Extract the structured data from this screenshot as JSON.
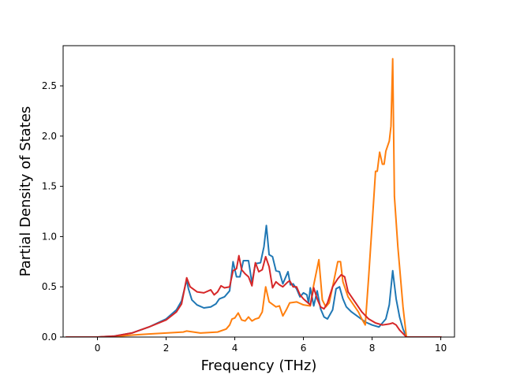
{
  "chart_data": {
    "type": "line",
    "title": "",
    "xlabel": "Frequency (THz)",
    "ylabel": "Partial Density of States",
    "xlim": [
      -1.0,
      10.4
    ],
    "ylim": [
      0.0,
      2.9
    ],
    "grid": false,
    "legend": "none",
    "x_ticks": [
      0,
      2,
      4,
      6,
      8,
      10
    ],
    "y_ticks": [
      0.0,
      0.5,
      1.0,
      1.5,
      2.0,
      2.5
    ],
    "x_tick_labels": [
      "0",
      "2",
      "4",
      "6",
      "8",
      "10"
    ],
    "y_tick_labels": [
      "0.0",
      "0.5",
      "1.0",
      "1.5",
      "2.0",
      "2.5"
    ],
    "series": [
      {
        "color": "#1f77b4",
        "points": [
          [
            -0.9,
            0
          ],
          [
            0,
            0
          ],
          [
            0.5,
            0.01
          ],
          [
            1.0,
            0.04
          ],
          [
            1.5,
            0.1
          ],
          [
            2.0,
            0.18
          ],
          [
            2.3,
            0.27
          ],
          [
            2.45,
            0.36
          ],
          [
            2.6,
            0.57
          ],
          [
            2.65,
            0.48
          ],
          [
            2.75,
            0.37
          ],
          [
            2.9,
            0.32
          ],
          [
            3.1,
            0.29
          ],
          [
            3.3,
            0.3
          ],
          [
            3.45,
            0.33
          ],
          [
            3.55,
            0.38
          ],
          [
            3.7,
            0.4
          ],
          [
            3.85,
            0.46
          ],
          [
            3.95,
            0.75
          ],
          [
            4.05,
            0.6
          ],
          [
            4.15,
            0.6
          ],
          [
            4.25,
            0.76
          ],
          [
            4.4,
            0.76
          ],
          [
            4.5,
            0.54
          ],
          [
            4.6,
            0.73
          ],
          [
            4.75,
            0.74
          ],
          [
            4.85,
            0.9
          ],
          [
            4.92,
            1.11
          ],
          [
            5.0,
            0.82
          ],
          [
            5.1,
            0.8
          ],
          [
            5.2,
            0.66
          ],
          [
            5.3,
            0.65
          ],
          [
            5.4,
            0.53
          ],
          [
            5.55,
            0.65
          ],
          [
            5.62,
            0.52
          ],
          [
            5.7,
            0.53
          ],
          [
            5.8,
            0.48
          ],
          [
            5.9,
            0.4
          ],
          [
            6.0,
            0.44
          ],
          [
            6.1,
            0.42
          ],
          [
            6.15,
            0.34
          ],
          [
            6.2,
            0.49
          ],
          [
            6.3,
            0.31
          ],
          [
            6.4,
            0.46
          ],
          [
            6.5,
            0.28
          ],
          [
            6.6,
            0.2
          ],
          [
            6.7,
            0.18
          ],
          [
            6.85,
            0.27
          ],
          [
            6.95,
            0.48
          ],
          [
            7.05,
            0.5
          ],
          [
            7.15,
            0.38
          ],
          [
            7.25,
            0.3
          ],
          [
            7.4,
            0.25
          ],
          [
            7.6,
            0.2
          ],
          [
            7.8,
            0.15
          ],
          [
            8.0,
            0.12
          ],
          [
            8.2,
            0.1
          ],
          [
            8.4,
            0.18
          ],
          [
            8.5,
            0.32
          ],
          [
            8.6,
            0.66
          ],
          [
            8.7,
            0.38
          ],
          [
            8.8,
            0.2
          ],
          [
            8.9,
            0.08
          ],
          [
            9.0,
            0
          ],
          [
            10.0,
            0
          ]
        ]
      },
      {
        "color": "#ff7f0e",
        "points": [
          [
            -0.9,
            0
          ],
          [
            0,
            0
          ],
          [
            0.5,
            0.005
          ],
          [
            1.0,
            0.02
          ],
          [
            1.5,
            0.03
          ],
          [
            2.0,
            0.04
          ],
          [
            2.5,
            0.05
          ],
          [
            2.6,
            0.06
          ],
          [
            3.0,
            0.04
          ],
          [
            3.5,
            0.05
          ],
          [
            3.75,
            0.08
          ],
          [
            3.85,
            0.12
          ],
          [
            3.92,
            0.18
          ],
          [
            4.0,
            0.19
          ],
          [
            4.1,
            0.24
          ],
          [
            4.2,
            0.17
          ],
          [
            4.3,
            0.16
          ],
          [
            4.4,
            0.2
          ],
          [
            4.5,
            0.16
          ],
          [
            4.6,
            0.18
          ],
          [
            4.7,
            0.19
          ],
          [
            4.8,
            0.25
          ],
          [
            4.9,
            0.5
          ],
          [
            5.0,
            0.35
          ],
          [
            5.2,
            0.3
          ],
          [
            5.3,
            0.31
          ],
          [
            5.4,
            0.21
          ],
          [
            5.5,
            0.27
          ],
          [
            5.6,
            0.34
          ],
          [
            5.8,
            0.35
          ],
          [
            6.0,
            0.32
          ],
          [
            6.2,
            0.31
          ],
          [
            6.3,
            0.52
          ],
          [
            6.45,
            0.77
          ],
          [
            6.55,
            0.37
          ],
          [
            6.65,
            0.3
          ],
          [
            6.75,
            0.34
          ],
          [
            6.85,
            0.5
          ],
          [
            7.0,
            0.75
          ],
          [
            7.08,
            0.75
          ],
          [
            7.15,
            0.55
          ],
          [
            7.3,
            0.4
          ],
          [
            7.5,
            0.3
          ],
          [
            7.6,
            0.25
          ],
          [
            7.7,
            0.18
          ],
          [
            7.8,
            0.12
          ],
          [
            7.9,
            0.6
          ],
          [
            8.0,
            1.12
          ],
          [
            8.1,
            1.65
          ],
          [
            8.15,
            1.65
          ],
          [
            8.22,
            1.84
          ],
          [
            8.3,
            1.72
          ],
          [
            8.35,
            1.72
          ],
          [
            8.4,
            1.85
          ],
          [
            8.5,
            1.95
          ],
          [
            8.55,
            2.1
          ],
          [
            8.6,
            2.77
          ],
          [
            8.65,
            1.4
          ],
          [
            8.75,
            0.9
          ],
          [
            8.9,
            0.3
          ],
          [
            9.0,
            0
          ],
          [
            10.0,
            0
          ]
        ]
      },
      {
        "color": "#d62728",
        "points": [
          [
            -0.9,
            0
          ],
          [
            0,
            0
          ],
          [
            0.5,
            0.01
          ],
          [
            1.0,
            0.04
          ],
          [
            1.5,
            0.1
          ],
          [
            2.0,
            0.17
          ],
          [
            2.3,
            0.25
          ],
          [
            2.45,
            0.33
          ],
          [
            2.6,
            0.59
          ],
          [
            2.7,
            0.5
          ],
          [
            2.9,
            0.45
          ],
          [
            3.1,
            0.44
          ],
          [
            3.3,
            0.47
          ],
          [
            3.4,
            0.42
          ],
          [
            3.5,
            0.45
          ],
          [
            3.6,
            0.51
          ],
          [
            3.7,
            0.49
          ],
          [
            3.85,
            0.5
          ],
          [
            3.95,
            0.66
          ],
          [
            4.05,
            0.68
          ],
          [
            4.12,
            0.81
          ],
          [
            4.2,
            0.67
          ],
          [
            4.3,
            0.63
          ],
          [
            4.4,
            0.6
          ],
          [
            4.5,
            0.51
          ],
          [
            4.6,
            0.74
          ],
          [
            4.7,
            0.65
          ],
          [
            4.8,
            0.67
          ],
          [
            4.9,
            0.8
          ],
          [
            5.0,
            0.7
          ],
          [
            5.1,
            0.49
          ],
          [
            5.2,
            0.55
          ],
          [
            5.3,
            0.52
          ],
          [
            5.4,
            0.5
          ],
          [
            5.55,
            0.55
          ],
          [
            5.6,
            0.56
          ],
          [
            5.7,
            0.5
          ],
          [
            5.8,
            0.5
          ],
          [
            5.9,
            0.42
          ],
          [
            6.0,
            0.38
          ],
          [
            6.1,
            0.35
          ],
          [
            6.2,
            0.32
          ],
          [
            6.3,
            0.49
          ],
          [
            6.4,
            0.38
          ],
          [
            6.5,
            0.3
          ],
          [
            6.6,
            0.28
          ],
          [
            6.7,
            0.34
          ],
          [
            6.85,
            0.5
          ],
          [
            7.0,
            0.58
          ],
          [
            7.1,
            0.62
          ],
          [
            7.2,
            0.6
          ],
          [
            7.3,
            0.45
          ],
          [
            7.5,
            0.35
          ],
          [
            7.7,
            0.25
          ],
          [
            7.9,
            0.18
          ],
          [
            8.1,
            0.14
          ],
          [
            8.3,
            0.12
          ],
          [
            8.5,
            0.13
          ],
          [
            8.6,
            0.14
          ],
          [
            8.7,
            0.12
          ],
          [
            8.8,
            0.07
          ],
          [
            9.0,
            0
          ],
          [
            10.0,
            0
          ]
        ]
      }
    ]
  }
}
